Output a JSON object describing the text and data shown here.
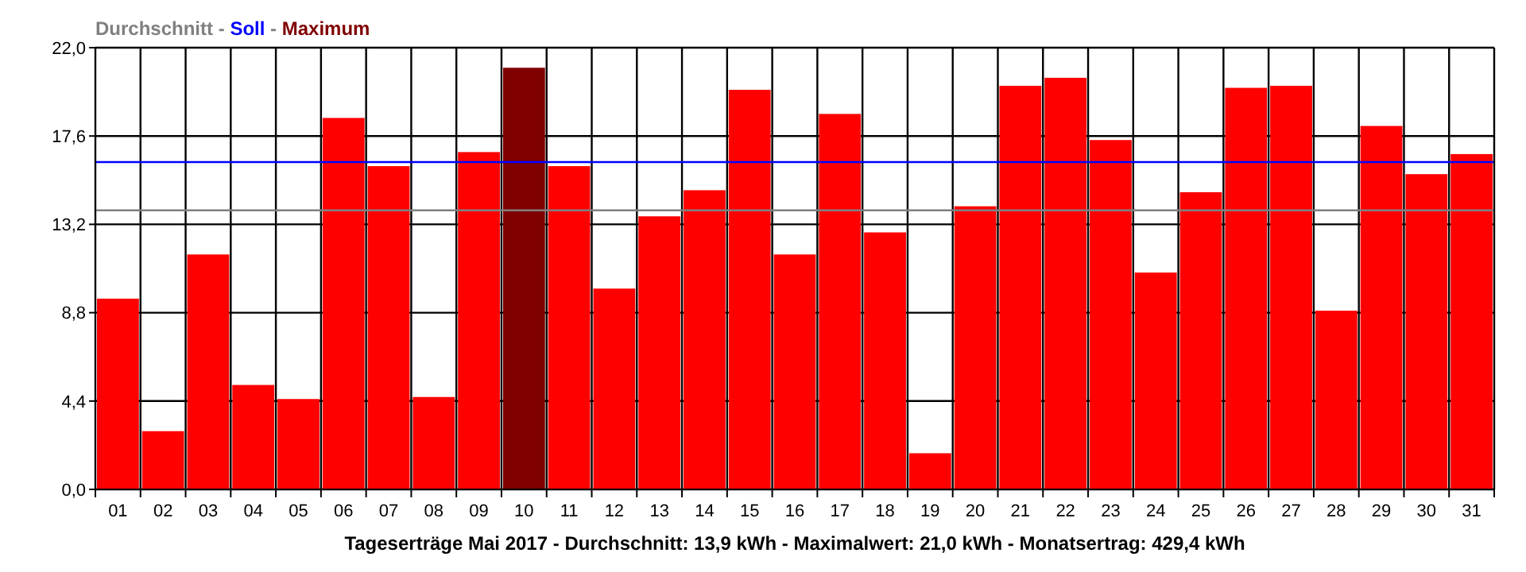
{
  "chart_data": {
    "type": "bar",
    "title": "Durchschnitt - Soll - Maximum",
    "xlabel": "Tageserträge Mai 2017 - Durchschnitt: 13,9 kWh - Maximalwert: 21,0 kWh - Monatsertrag: 429,4 kWh",
    "categories": [
      "01",
      "02",
      "03",
      "04",
      "05",
      "06",
      "07",
      "08",
      "09",
      "10",
      "11",
      "12",
      "13",
      "14",
      "15",
      "16",
      "17",
      "18",
      "19",
      "20",
      "21",
      "22",
      "23",
      "24",
      "25",
      "26",
      "27",
      "28",
      "29",
      "30",
      "31"
    ],
    "values": [
      9.5,
      2.9,
      11.7,
      5.2,
      4.5,
      18.5,
      16.1,
      4.6,
      16.8,
      21.0,
      16.1,
      10.0,
      13.6,
      14.9,
      19.9,
      11.7,
      18.7,
      12.8,
      1.8,
      14.1,
      20.1,
      20.5,
      17.4,
      10.8,
      14.8,
      20.0,
      20.1,
      8.9,
      18.1,
      15.7,
      16.7
    ],
    "colors": [
      "#ff0000",
      "#ff0000",
      "#ff0000",
      "#ff0000",
      "#ff0000",
      "#ff0000",
      "#ff0000",
      "#ff0000",
      "#ff0000",
      "#800000",
      "#ff0000",
      "#ff0000",
      "#ff0000",
      "#ff0000",
      "#ff0000",
      "#ff0000",
      "#ff0000",
      "#ff0000",
      "#ff0000",
      "#ff0000",
      "#ff0000",
      "#ff0000",
      "#ff0000",
      "#ff0000",
      "#ff0000",
      "#ff0000",
      "#ff0000",
      "#ff0000",
      "#ff0000",
      "#ff0000",
      "#ff0000"
    ],
    "ylim": [
      0,
      22
    ],
    "yticks": [
      {
        "value": 0,
        "label": "0,0"
      },
      {
        "value": 4.4,
        "label": "4,4"
      },
      {
        "value": 8.8,
        "label": "8,8"
      },
      {
        "value": 13.2,
        "label": "13,2"
      },
      {
        "value": 17.6,
        "label": "17,6"
      },
      {
        "value": 22,
        "label": "22,0"
      }
    ],
    "grid": true,
    "ref_lines": [
      {
        "axis": "y",
        "value": 13.9,
        "color": "#808080"
      },
      {
        "axis": "y",
        "value": 16.3,
        "color": "#0000ff"
      }
    ]
  }
}
